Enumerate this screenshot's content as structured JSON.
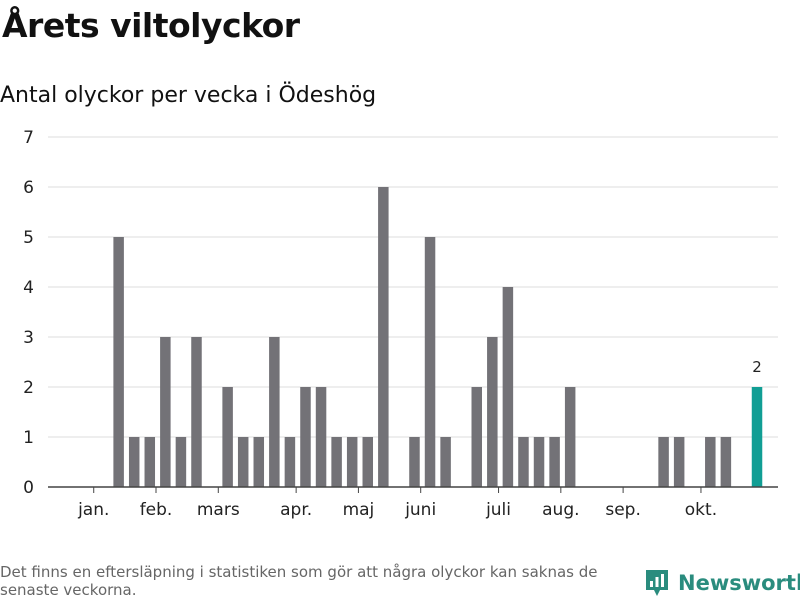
{
  "header": {
    "title": "Årets viltolyckor",
    "subtitle": "Antal olyckor per vecka i Ödeshög"
  },
  "chart_data": {
    "type": "bar",
    "title": "Årets viltolyckor",
    "subtitle": "Antal olyckor per vecka i Ödeshög",
    "xlabel": "",
    "ylabel": "",
    "ylim": [
      0,
      7
    ],
    "yticks": [
      0,
      1,
      2,
      3,
      4,
      5,
      6,
      7
    ],
    "grid": true,
    "x": [
      1,
      2,
      3,
      4,
      5,
      6,
      7,
      8,
      9,
      10,
      11,
      12,
      13,
      14,
      15,
      16,
      17,
      18,
      19,
      20,
      21,
      22,
      23,
      24,
      25,
      26,
      27,
      28,
      29,
      30,
      31,
      32,
      33,
      34,
      35,
      36,
      37,
      38,
      39,
      40,
      41,
      42,
      43
    ],
    "values": [
      0,
      5,
      1,
      1,
      3,
      1,
      3,
      0,
      2,
      1,
      1,
      3,
      1,
      2,
      2,
      1,
      1,
      1,
      6,
      0,
      1,
      5,
      1,
      0,
      2,
      3,
      4,
      1,
      1,
      1,
      2,
      0,
      0,
      0,
      0,
      0,
      1,
      1,
      0,
      1,
      1,
      0,
      2
    ],
    "highlight": {
      "week": 43,
      "value": 2,
      "label": "2"
    },
    "month_ticks": [
      {
        "label": "jan.",
        "week": 0.4
      },
      {
        "label": "feb.",
        "week": 4.4
      },
      {
        "label": "mars",
        "week": 8.4
      },
      {
        "label": "apr.",
        "week": 13.4
      },
      {
        "label": "maj",
        "week": 17.4
      },
      {
        "label": "juni",
        "week": 21.4
      },
      {
        "label": "juli",
        "week": 26.4
      },
      {
        "label": "aug.",
        "week": 30.4
      },
      {
        "label": "sep.",
        "week": 34.4
      },
      {
        "label": "okt.",
        "week": 39.4
      }
    ],
    "colors": {
      "bar": "#737277",
      "highlight": "#119e94",
      "grid": "#dddddd",
      "axis": "#444444"
    }
  },
  "footer": {
    "note": "Det finns en eftersläpning i statistiken som gör att några olyckor kan saknas de senaste veckorna.",
    "brand": "Newsworthy",
    "brand_icon": "newsworthy-logo-icon"
  }
}
